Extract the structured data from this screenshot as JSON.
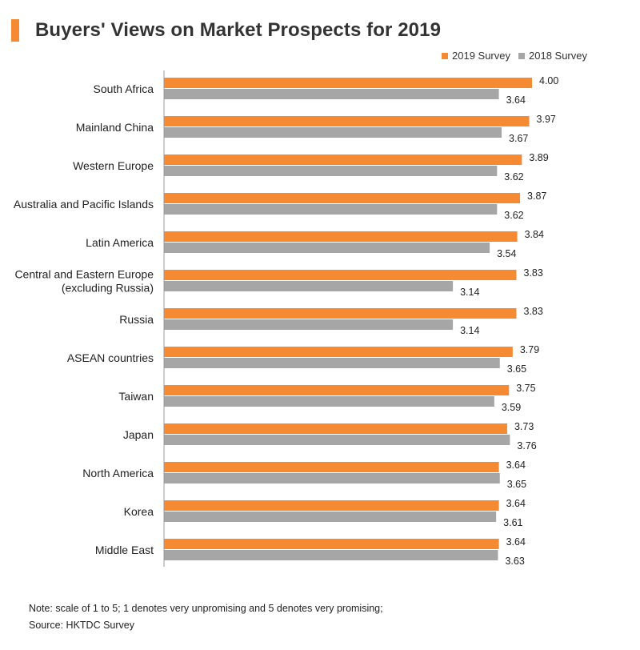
{
  "title": "Buyers' Views on Market Prospects for 2019",
  "colors": {
    "accent": "#f58a33",
    "series_2019": "#f58a33",
    "series_2018": "#a6a6a6",
    "axis": "#999999"
  },
  "chart_data": {
    "type": "bar",
    "orientation": "horizontal",
    "categories": [
      [
        "South Africa"
      ],
      [
        "Mainland China"
      ],
      [
        "Western Europe"
      ],
      [
        "Australia and Pacific Islands"
      ],
      [
        "Latin America"
      ],
      [
        "Central and Eastern Europe",
        "(excluding Russia)"
      ],
      [
        "Russia"
      ],
      [
        "ASEAN countries"
      ],
      [
        "Taiwan"
      ],
      [
        "Japan"
      ],
      [
        "North America"
      ],
      [
        "Korea"
      ],
      [
        "Middle East"
      ]
    ],
    "series": [
      {
        "name": "2019 Survey",
        "values": [
          4.0,
          3.97,
          3.89,
          3.87,
          3.84,
          3.83,
          3.83,
          3.79,
          3.75,
          3.73,
          3.64,
          3.64,
          3.64
        ],
        "labels": [
          "4.00",
          "3.97",
          "3.89",
          "3.87",
          "3.84",
          "3.83",
          "3.83",
          "3.79",
          "3.75",
          "3.73",
          "3.64",
          "3.64",
          "3.64"
        ]
      },
      {
        "name": "2018 Survey",
        "values": [
          3.64,
          3.67,
          3.62,
          3.62,
          3.54,
          3.14,
          3.14,
          3.65,
          3.59,
          3.76,
          3.65,
          3.61,
          3.63
        ],
        "labels": [
          "3.64",
          "3.67",
          "3.62",
          "3.62",
          "3.54",
          "3.14",
          "3.14",
          "3.65",
          "3.59",
          "3.76",
          "3.65",
          "3.61",
          "3.63"
        ]
      }
    ],
    "xlim": [
      0,
      4.0
    ],
    "legend_position": "top-right",
    "grid": false
  },
  "note": "Note: scale of 1 to 5; 1 denotes very unpromising and 5 denotes very promising;",
  "source": "Source: HKTDC Survey"
}
